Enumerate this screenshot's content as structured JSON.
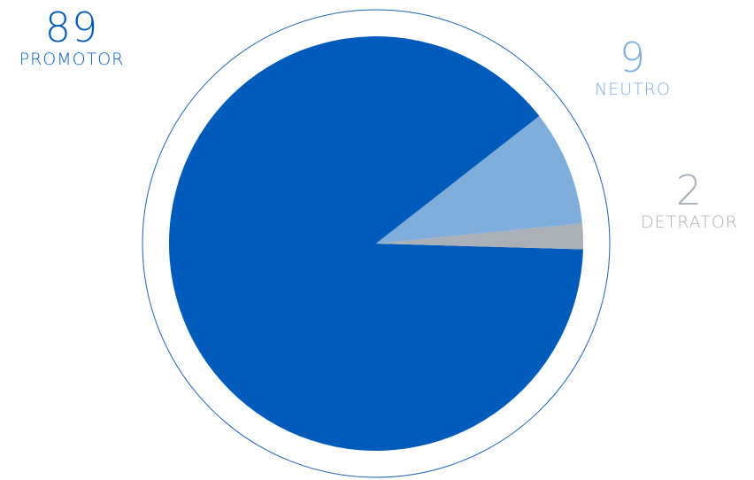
{
  "chart_data": {
    "type": "pie",
    "categories": [
      "PROMOTOR",
      "NEUTRO",
      "DETRATOR"
    ],
    "values": [
      89,
      9,
      2
    ],
    "value_labels": [
      "89",
      "9",
      "2"
    ],
    "colors": [
      "#005BBB",
      "#7FAEDD",
      "#A9B0B8"
    ],
    "outer_ring_color": "#1F63B8",
    "title": "",
    "legend": "none"
  }
}
